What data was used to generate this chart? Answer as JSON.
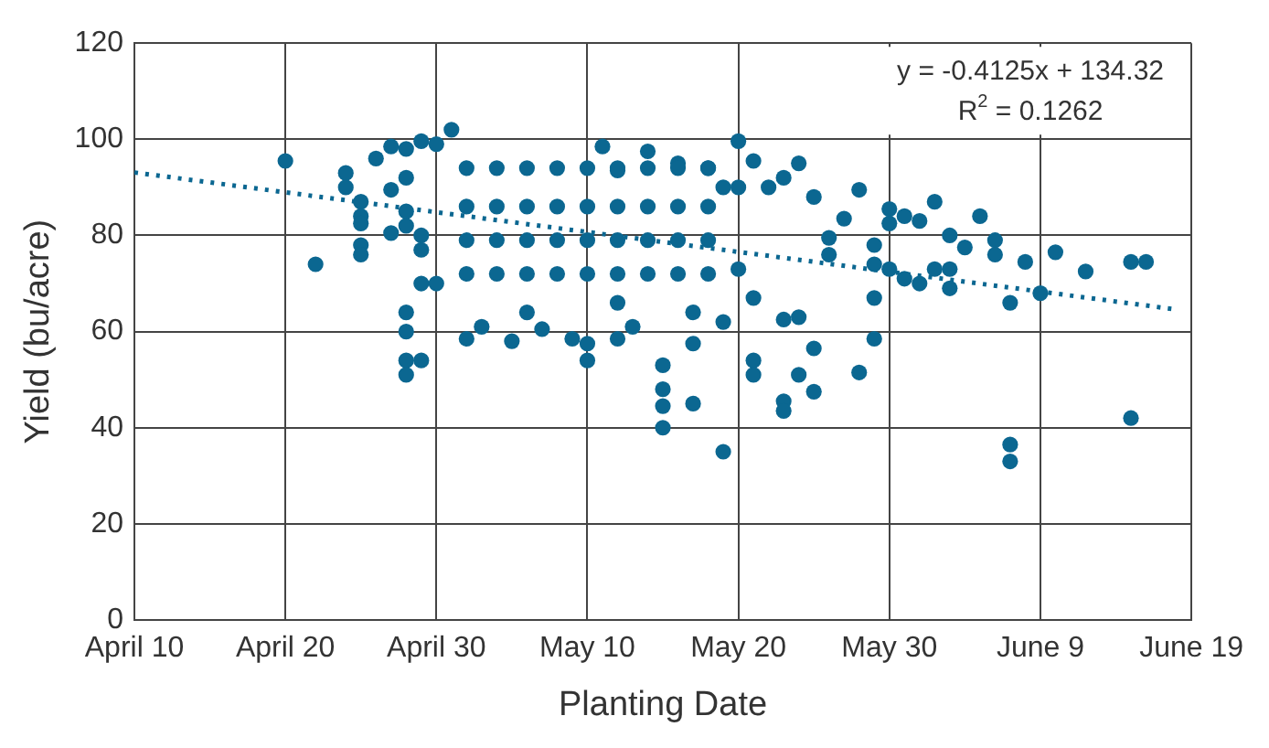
{
  "chart_data": {
    "type": "scatter",
    "xlabel": "Planting Date",
    "ylabel": "Yield (bu/acre)",
    "xlim": [
      "--04-10",
      "--06-19"
    ],
    "xticks": [
      {
        "value": "--04-10",
        "label": "April 10"
      },
      {
        "value": "--04-20",
        "label": "April 20"
      },
      {
        "value": "--04-30",
        "label": "April 30"
      },
      {
        "value": "--05-10",
        "label": "May 10"
      },
      {
        "value": "--05-20",
        "label": "May 20"
      },
      {
        "value": "--05-30",
        "label": "May 30"
      },
      {
        "value": "--06-09",
        "label": "June 9"
      },
      {
        "value": "--06-19",
        "label": "June 19"
      }
    ],
    "ylim": [
      0,
      120
    ],
    "yticks": [
      0,
      20,
      40,
      60,
      80,
      100,
      120
    ],
    "grid": true,
    "legend": false,
    "marker": "circle",
    "annotations": [
      "y = -0.4125x + 134.32",
      "R$^{2}$ = 0.1262"
    ],
    "series": [
      {
        "color": "#0b6791",
        "x": [
          "--04-20",
          "--04-22",
          "--04-24",
          "--04-24",
          "--04-25",
          "--04-25",
          "--04-25",
          "--04-25",
          "--04-25",
          "--04-26",
          "--04-27",
          "--04-27",
          "--04-27",
          "--04-28",
          "--04-28",
          "--04-28",
          "--04-28",
          "--04-28",
          "--04-28",
          "--04-28",
          "--04-28",
          "--04-29",
          "--04-29",
          "--04-29",
          "--04-29",
          "--04-29",
          "--04-30",
          "--04-30",
          "--05-01",
          "--05-02",
          "--05-03",
          "--05-05",
          "--05-06",
          "--05-07",
          "--05-09",
          "--05-10",
          "--05-10",
          "--05-12",
          "--05-12",
          "--05-13",
          "--05-15",
          "--05-15",
          "--05-15",
          "--05-15",
          "--05-17",
          "--05-17",
          "--05-19",
          "--05-21",
          "--05-21",
          "--05-23",
          "--05-23",
          "--05-24",
          "--05-25",
          "--05-25",
          "--05-24",
          "--05-23",
          "--05-19",
          "--05-17",
          "--05-20",
          "--05-21",
          "--05-14",
          "--05-16",
          "--05-18",
          "--05-19",
          "--05-20",
          "--05-25",
          "--05-22",
          "--05-23",
          "--05-11",
          "--05-12",
          "--05-20",
          "--05-21",
          "--05-24",
          "--05-28",
          "--05-27",
          "--05-26",
          "--05-26",
          "--05-29",
          "--05-29",
          "--05-29",
          "--05-29",
          "--05-28",
          "--05-30",
          "--05-30",
          "--05-30",
          "--05-31",
          "--05-31",
          "--06-01",
          "--06-01",
          "--06-02",
          "--06-02",
          "--06-03",
          "--06-03",
          "--06-03",
          "--06-04",
          "--06-05",
          "--06-06",
          "--06-06",
          "--06-07",
          "--06-08",
          "--06-09",
          "--06-10",
          "--06-12",
          "--06-15",
          "--06-16",
          "--06-15",
          "--06-07",
          "--06-07",
          "--05-02",
          "--05-02",
          "--05-02",
          "--05-02",
          "--05-04",
          "--05-04",
          "--05-04",
          "--05-04",
          "--05-06",
          "--05-06",
          "--05-06",
          "--05-06",
          "--05-08",
          "--05-08",
          "--05-08",
          "--05-08",
          "--05-10",
          "--05-10",
          "--05-10",
          "--05-10",
          "--05-12",
          "--05-12",
          "--05-12",
          "--05-12",
          "--05-14",
          "--05-14",
          "--05-14",
          "--05-14",
          "--05-16",
          "--05-16",
          "--05-16",
          "--05-16",
          "--05-18",
          "--05-18",
          "--05-18",
          "--05-18"
        ],
        "values": [
          95.5,
          74,
          93,
          90,
          87,
          84,
          82.5,
          78,
          76,
          96,
          98.5,
          89.5,
          80.5,
          98,
          92,
          85,
          82,
          64,
          60,
          54,
          51,
          99.6,
          80,
          77,
          70,
          54,
          99,
          70,
          102,
          58.5,
          61,
          58,
          64,
          60.5,
          58.5,
          57.5,
          54,
          58.5,
          66,
          61,
          53,
          48,
          44.5,
          40,
          45,
          57.5,
          35,
          54,
          51,
          45.5,
          43.5,
          51,
          56.5,
          47.5,
          63,
          62.5,
          62,
          64,
          73,
          67,
          97.5,
          95,
          94,
          90,
          90,
          88,
          90,
          92,
          98.5,
          93.5,
          99.6,
          95.5,
          95,
          89.5,
          83.5,
          79.5,
          76,
          78,
          74,
          67,
          58.5,
          51.5,
          85.5,
          82.5,
          73,
          84,
          71,
          83,
          70,
          87,
          73,
          80,
          73,
          69,
          77.5,
          84,
          79,
          76,
          66,
          74.5,
          68,
          76.5,
          72.5,
          74.5,
          74.5,
          42,
          36.5,
          33,
          94,
          86,
          79,
          72,
          94,
          86,
          79,
          72,
          94,
          86,
          79,
          72,
          94,
          86,
          79,
          72,
          94,
          86,
          79,
          72,
          94,
          86,
          79,
          72,
          94,
          86,
          79,
          72,
          94,
          86,
          79,
          72,
          94,
          86,
          79,
          72
        ]
      },
      {
        "type": "line",
        "color": "#0b6791",
        "line_style": "dotted",
        "marker": "none",
        "x": [
          "--04-10",
          "--06-18"
        ],
        "values": [
          93.1,
          64.6
        ]
      }
    ]
  }
}
